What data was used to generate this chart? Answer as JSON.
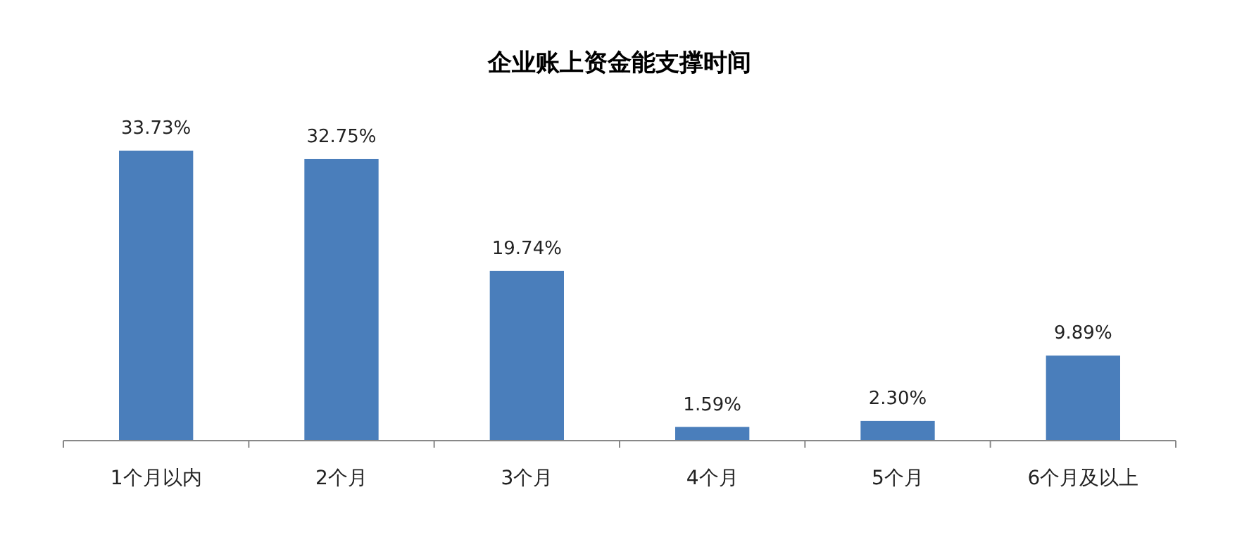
{
  "chart_data": {
    "type": "bar",
    "title": "企业账上资金能支撑时间",
    "categories": [
      "1个月以内",
      "2个月",
      "3个月",
      "4个月",
      "5个月",
      "6个月及以上"
    ],
    "values": [
      33.73,
      32.75,
      19.74,
      1.59,
      2.3,
      9.89
    ],
    "value_labels": [
      "33.73%",
      "32.75%",
      "19.74%",
      "1.59%",
      "2.30%",
      "9.89%"
    ],
    "color": "#4a7ebb",
    "tick_labels": "x"
  }
}
